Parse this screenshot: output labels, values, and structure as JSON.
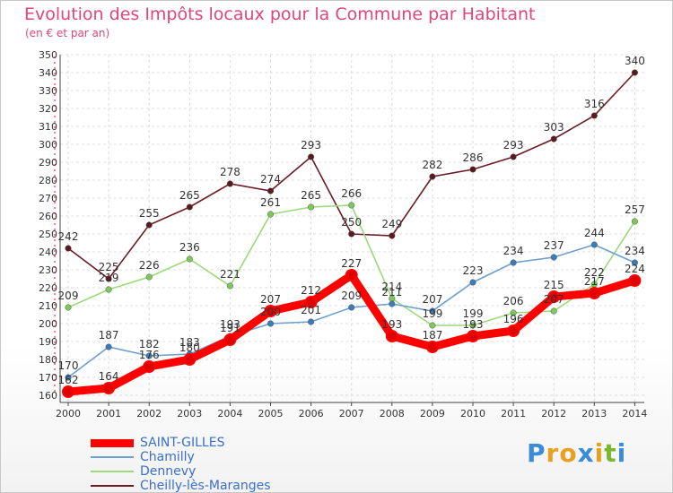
{
  "chart_data": {
    "type": "line",
    "title": "Evolution des Impôts locaux pour la Commune par Habitant",
    "subtitle": "(en € et par an)",
    "xlabel": "",
    "ylabel": "",
    "x": [
      "2000",
      "2001",
      "2002",
      "2003",
      "2004",
      "2005",
      "2006",
      "2007",
      "2008",
      "2009",
      "2010",
      "2011",
      "2012",
      "2013",
      "2014"
    ],
    "ylim": [
      160,
      350
    ],
    "yticks": [
      160,
      170,
      180,
      190,
      200,
      210,
      220,
      230,
      240,
      250,
      260,
      270,
      280,
      290,
      300,
      310,
      320,
      330,
      340,
      350
    ],
    "grid": true,
    "legend_position": "bottom-left",
    "series": [
      {
        "name": "Cheilly-lès-Maranges",
        "color": "#6b1c23",
        "point_color": "#5a1a1e",
        "values": [
          242,
          225,
          255,
          265,
          278,
          274,
          293,
          250,
          249,
          282,
          286,
          293,
          303,
          316,
          340
        ]
      },
      {
        "name": "Dennevy",
        "color": "#9bd97b",
        "point_color": "#7cc85a",
        "values": [
          209,
          219,
          226,
          236,
          221,
          261,
          265,
          266,
          214,
          199,
          199,
          206,
          207,
          222,
          257
        ]
      },
      {
        "name": "Chamilly",
        "color": "#6a9fcf",
        "point_color": "#3d7ab8",
        "values": [
          170,
          187,
          182,
          183,
          193,
          200,
          201,
          209,
          211,
          207,
          223,
          234,
          237,
          244,
          234
        ]
      },
      {
        "name": "SAINT-GILLES",
        "color": "#ff0000",
        "point_color": "#e00000",
        "values": [
          162,
          164,
          176,
          180,
          191,
          207,
          212,
          227,
          193,
          187,
          193,
          196,
          215,
          217,
          224
        ]
      }
    ],
    "legend_order": [
      "SAINT-GILLES",
      "Chamilly",
      "Dennevy",
      "Cheilly-lès-Maranges"
    ]
  },
  "logo": {
    "text": "Proxiti",
    "letters": [
      "P",
      "r",
      "o",
      "x",
      "i",
      "t",
      "i"
    ],
    "colors": [
      "#3a8bd8",
      "#e8a020",
      "#e8a020",
      "#3a8bd8",
      "#e8a020",
      "#7ab830",
      "#3a8bd8"
    ]
  }
}
